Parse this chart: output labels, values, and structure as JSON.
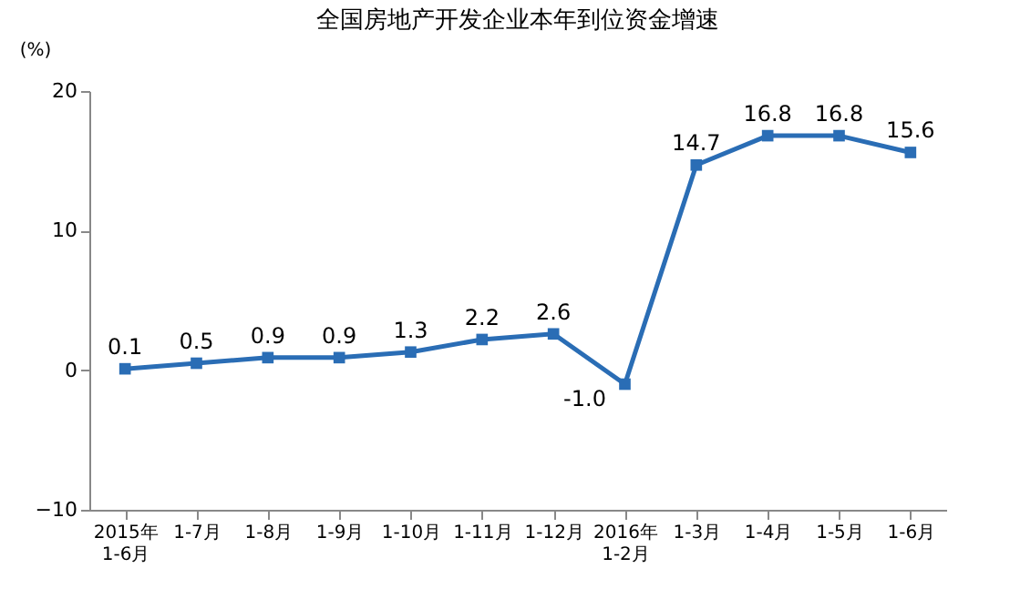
{
  "chart_data": {
    "type": "line",
    "title": "全国房地产开发企业本年到位资金增速",
    "ylabel": "(%)",
    "categories": [
      "2015年\n1-6月",
      "1-7月",
      "1-8月",
      "1-9月",
      "1-10月",
      "1-11月",
      "1-12月",
      "2016年\n1-2月",
      "1-3月",
      "1-4月",
      "1-5月",
      "1-6月"
    ],
    "series": [
      {
        "color": "#2a6db5",
        "values": [
          0.1,
          0.5,
          0.9,
          0.9,
          1.3,
          2.2,
          2.6,
          -1.0,
          14.7,
          16.8,
          16.8,
          15.6
        ],
        "value_labels": [
          "0.1",
          "0.5",
          "0.9",
          "0.9",
          "1.3",
          "2.2",
          "2.6",
          "-1.0",
          "14.7",
          "16.8",
          "16.8",
          "15.6"
        ]
      }
    ],
    "ylim": [
      -10,
      20
    ],
    "yticks": [
      -10,
      0,
      10,
      20
    ],
    "grid": false,
    "marker": "square",
    "line_style": "solid"
  }
}
